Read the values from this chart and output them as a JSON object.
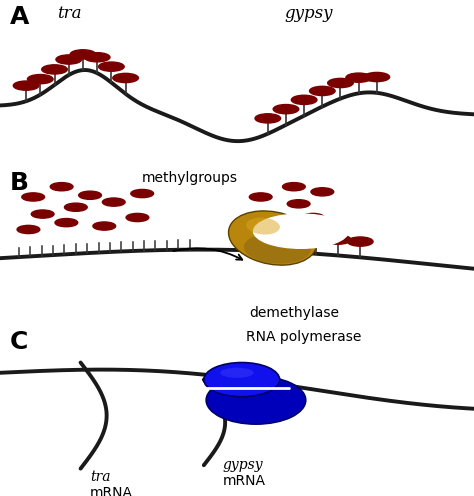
{
  "background_color": "#ffffff",
  "chrom_color": "#1a1a1a",
  "methyl_color": "#7a0000",
  "chrom_lw": 2.8,
  "panel_A": {
    "label": "A",
    "tra_label": "tra",
    "gypsy_label": "gypsy"
  },
  "panel_B": {
    "label": "B",
    "methylgroups_label": "methylgroups",
    "demethylase_label": "demethylase",
    "enzyme_color": "#B8860B",
    "enzyme_shadow": "#5a4000"
  },
  "panel_C": {
    "label": "C",
    "rna_pol_label": "RNA polymerase",
    "gypsy_mrna_1": "gypsy",
    "gypsy_mrna_2": "mRNA",
    "tra_mrna_1": "tra",
    "tra_mrna_2": "mRNA",
    "rna_color1": "#0000bb",
    "rna_color2": "#1111ee",
    "rna_color3": "#3333cc"
  }
}
